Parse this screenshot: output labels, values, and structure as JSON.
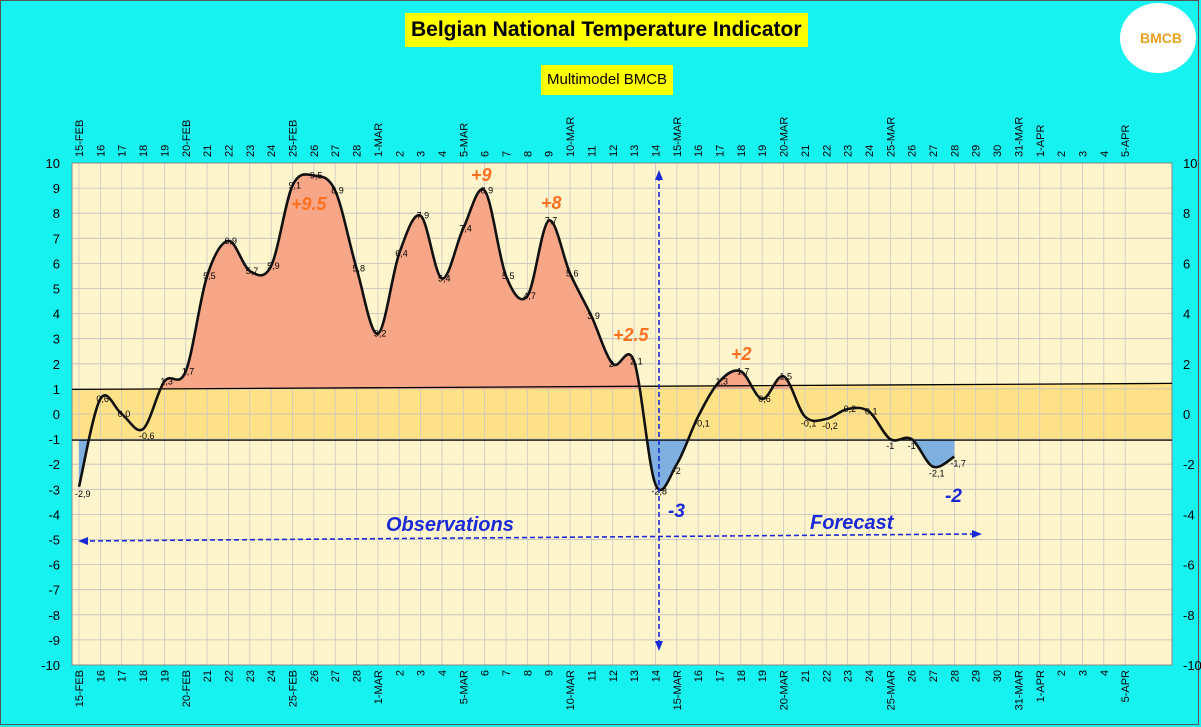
{
  "chart_data": {
    "type": "line",
    "title": "Belgian National Temperature Indicator",
    "subtitle": "Multimodel BMCB",
    "logo_text": "BMCB",
    "ylim": [
      -10,
      10
    ],
    "y_ticks": [
      10,
      9,
      8,
      7,
      6,
      5,
      4,
      3,
      2,
      1,
      0,
      -1,
      -2,
      -3,
      -4,
      -5,
      -6,
      -7,
      -8,
      -9,
      -10
    ],
    "y_right_ticks": [
      10,
      8,
      6,
      4,
      2,
      0,
      -2,
      -4,
      -6,
      -8,
      -10
    ],
    "x_labels": [
      "15-FEB",
      "16",
      "17",
      "18",
      "19",
      "20-FEB",
      "21",
      "22",
      "23",
      "24",
      "25-FEB",
      "26",
      "27",
      "28",
      "1-MAR",
      "2",
      "3",
      "4",
      "5-MAR",
      "6",
      "7",
      "8",
      "9",
      "10-MAR",
      "11",
      "12",
      "13",
      "14",
      "15-MAR",
      "16",
      "17",
      "18",
      "19",
      "20-MAR",
      "21",
      "22",
      "23",
      "24",
      "25-MAR",
      "26",
      "27",
      "28",
      "29",
      "30",
      "31-MAR",
      "1-APR",
      "2",
      "3",
      "4",
      "5-APR"
    ],
    "band": [
      -1,
      1
    ],
    "series": [
      {
        "values": [
          -2.9,
          0.6,
          0.0,
          -0.6,
          1.3,
          1.7,
          5.5,
          6.9,
          5.7,
          5.9,
          9.1,
          9.5,
          8.9,
          5.8,
          3.2,
          6.4,
          7.9,
          5.4,
          7.4,
          8.9,
          5.5,
          4.7,
          7.7,
          5.6,
          3.9,
          2.0,
          2.1,
          -2.8,
          -2.0,
          -0.1,
          1.3,
          1.7,
          0.6,
          1.5,
          -0.1,
          -0.2,
          0.2,
          0.1,
          -1.0,
          -1.0,
          -2.1,
          -1.7
        ],
        "labels": [
          "-2,9",
          "0,6",
          "0,0",
          "-0,6",
          "1,3",
          "1,7",
          "5,5",
          "6,9",
          "5,7",
          "5,9",
          "9,1",
          "9,5",
          "8,9",
          "5,8",
          "3,2",
          "6,4",
          "7,9",
          "5,4",
          "7,4",
          "8,9",
          "5,5",
          "4,7",
          "7,7",
          "5,6",
          "3,9",
          "2",
          "2,1",
          "-2,8",
          "-2",
          "-0,1",
          "1,3",
          "1,7",
          "0,6",
          "1,5",
          "-0,1",
          "-0,2",
          "0,2",
          "0,1",
          "-1",
          "-1",
          "-2,1",
          "-1,7"
        ]
      }
    ],
    "annotations": [
      {
        "text": "+9.5",
        "color": "#ff7020"
      },
      {
        "text": "+9",
        "color": "#ff7020"
      },
      {
        "text": "+8",
        "color": "#ff7020"
      },
      {
        "text": "+2.5",
        "color": "#ff7020"
      },
      {
        "text": "+2",
        "color": "#ff7020"
      },
      {
        "text": "-3",
        "color": "#1a2ad6"
      },
      {
        "text": "-2",
        "color": "#1a2ad6"
      },
      {
        "text": "Observations",
        "color": "#1a2ad6"
      },
      {
        "text": "Forecast",
        "color": "#1a2ad6"
      }
    ],
    "colors": {
      "warm": "#f7a688",
      "cold": "#7fb0e0",
      "plot_bg": "#fff5cc",
      "band": "#ffe080",
      "arrow": "#1a2ad6"
    }
  }
}
